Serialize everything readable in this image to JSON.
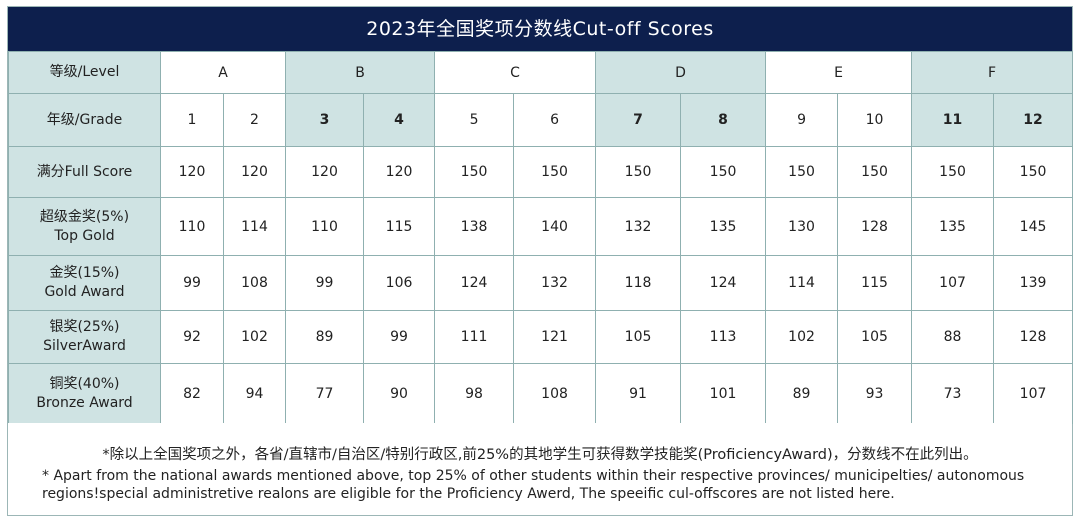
{
  "title": "2023年全国奖项分数线Cut-off Scores",
  "levels": {
    "label": "等级/Level",
    "items": [
      "A",
      "B",
      "C",
      "D",
      "E",
      "F"
    ]
  },
  "grades": {
    "label": "年级/Grade",
    "items": [
      "1",
      "2",
      "3",
      "4",
      "5",
      "6",
      "7",
      "8",
      "9",
      "10",
      "11",
      "12"
    ]
  },
  "rows": [
    {
      "label_cn": "满分Full Score",
      "label_en": "",
      "values": [
        "120",
        "120",
        "120",
        "120",
        "150",
        "150",
        "150",
        "150",
        "150",
        "150",
        "150",
        "150"
      ]
    },
    {
      "label_cn": "超级金奖(5%)",
      "label_en": "Top Gold",
      "values": [
        "110",
        "114",
        "110",
        "115",
        "138",
        "140",
        "132",
        "135",
        "130",
        "128",
        "135",
        "145"
      ]
    },
    {
      "label_cn": "金奖(15%)",
      "label_en": "Gold Award",
      "values": [
        "99",
        "108",
        "99",
        "106",
        "124",
        "132",
        "118",
        "124",
        "114",
        "115",
        "107",
        "139"
      ]
    },
    {
      "label_cn": "银奖(25%)",
      "label_en": "SilverAward",
      "values": [
        "92",
        "102",
        "89",
        "99",
        "111",
        "121",
        "105",
        "113",
        "102",
        "105",
        "88",
        "128"
      ]
    },
    {
      "label_cn": "铜奖(40%)",
      "label_en": "Bronze Award",
      "values": [
        "82",
        "94",
        "77",
        "90",
        "98",
        "108",
        "91",
        "101",
        "89",
        "93",
        "73",
        "107"
      ]
    }
  ],
  "notes": {
    "line1": "*除以上全国奖项之外，各省/直辖市/自治区/特别行政区,前25%的其地学生可获得数学技能奖(ProficiencyAward)，分数线不在此列出。",
    "line2": "* Apart from the national awards mentioned above, top 25% of other students within their respective provinces/ municipelties/ autonomous regions!special administretive realons are eligible for the Proficiency Awerd, The speeific cul-offscores are not listed here."
  },
  "colors": {
    "title_bg": "#0d1f4d",
    "teal": "#cfe3e3",
    "border": "#8fb0b0"
  }
}
